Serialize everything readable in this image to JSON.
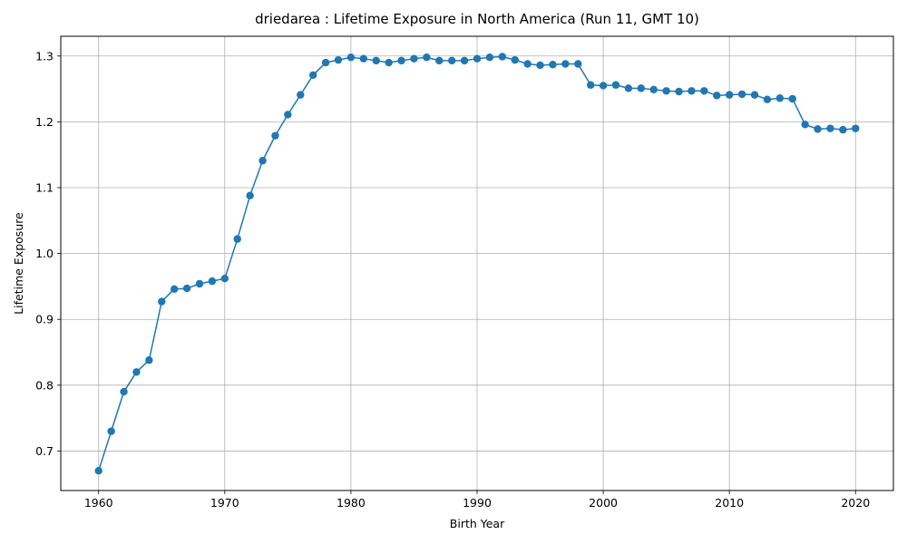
{
  "chart_data": {
    "type": "line",
    "title": "driedarea : Lifetime Exposure in North America (Run 11, GMT 10)",
    "xlabel": "Birth Year",
    "ylabel": "Lifetime Exposure",
    "xlim": [
      1957,
      2023
    ],
    "ylim": [
      0.64,
      1.33
    ],
    "xticks": [
      1960,
      1970,
      1980,
      1990,
      2000,
      2010,
      2020
    ],
    "yticks": [
      0.7,
      0.8,
      0.9,
      1.0,
      1.1,
      1.2,
      1.3
    ],
    "ytick_labels": [
      "0.7",
      "0.8",
      "0.9",
      "1.0",
      "1.1",
      "1.2",
      "1.3"
    ],
    "grid": true,
    "legend": "none",
    "series": [
      {
        "color": "#1f77b4",
        "marker": "circle",
        "x": [
          1960,
          1961,
          1962,
          1963,
          1964,
          1965,
          1966,
          1967,
          1968,
          1969,
          1970,
          1971,
          1972,
          1973,
          1974,
          1975,
          1976,
          1977,
          1978,
          1979,
          1980,
          1981,
          1982,
          1983,
          1984,
          1985,
          1986,
          1987,
          1988,
          1989,
          1990,
          1991,
          1992,
          1993,
          1994,
          1995,
          1996,
          1997,
          1998,
          1999,
          2000,
          2001,
          2002,
          2003,
          2004,
          2005,
          2006,
          2007,
          2008,
          2009,
          2010,
          2011,
          2012,
          2013,
          2014,
          2015,
          2016,
          2017,
          2018,
          2019,
          2020
        ],
        "y": [
          0.67,
          0.73,
          0.79,
          0.82,
          0.838,
          0.927,
          0.946,
          0.947,
          0.954,
          0.958,
          0.962,
          1.022,
          1.088,
          1.141,
          1.179,
          1.211,
          1.241,
          1.271,
          1.29,
          1.294,
          1.298,
          1.296,
          1.293,
          1.29,
          1.293,
          1.296,
          1.298,
          1.293,
          1.293,
          1.293,
          1.296,
          1.298,
          1.299,
          1.294,
          1.288,
          1.286,
          1.287,
          1.288,
          1.288,
          1.256,
          1.255,
          1.256,
          1.251,
          1.251,
          1.249,
          1.247,
          1.246,
          1.247,
          1.247,
          1.24,
          1.241,
          1.242,
          1.241,
          1.234,
          1.236,
          1.235,
          1.196,
          1.189,
          1.19,
          1.188,
          1.19
        ]
      }
    ]
  }
}
